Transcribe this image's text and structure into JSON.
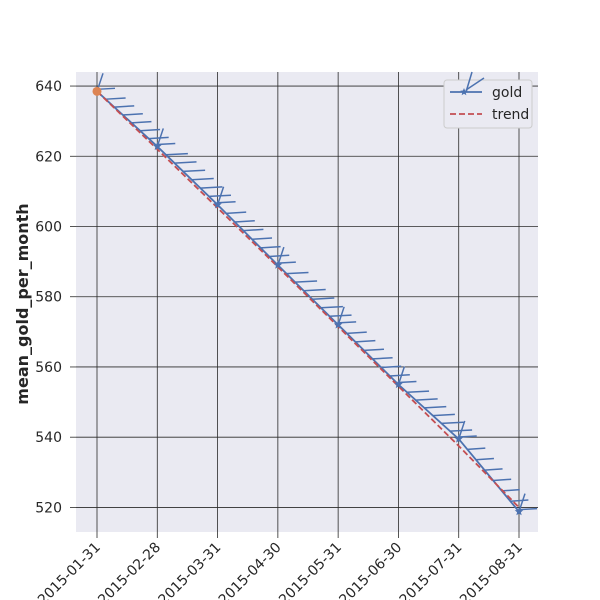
{
  "chart_data": {
    "type": "line",
    "title": "",
    "xlabel": "",
    "ylabel": "mean_gold_per_month",
    "x": [
      "2015-01-31",
      "2015-02-28",
      "2015-03-31",
      "2015-04-30",
      "2015-05-31",
      "2015-06-30",
      "2015-07-31",
      "2015-08-31"
    ],
    "xticks": [
      "2015-01-31",
      "2015-02-28",
      "2015-03-31",
      "2015-04-30",
      "2015-05-31",
      "2015-06-30",
      "2015-07-31",
      "2015-08-31"
    ],
    "yticks": [
      520,
      540,
      560,
      580,
      600,
      620,
      640
    ],
    "ylim": [
      513,
      644
    ],
    "grid": true,
    "legend_position": "top-right",
    "series": [
      {
        "name": "gold",
        "values": [
          638.5,
          622.8,
          606.2,
          589.0,
          572.0,
          555.0,
          539.5,
          518.8
        ],
        "color": "#4c72b0",
        "marker": "star",
        "barbs": true
      },
      {
        "name": "trend",
        "values": [
          638.5,
          622.0,
          605.3,
          588.5,
          571.5,
          554.5,
          537.5,
          520.0
        ],
        "color": "#c44e52",
        "style": "dashed",
        "start_marker_color": "#dd8452"
      }
    ]
  }
}
